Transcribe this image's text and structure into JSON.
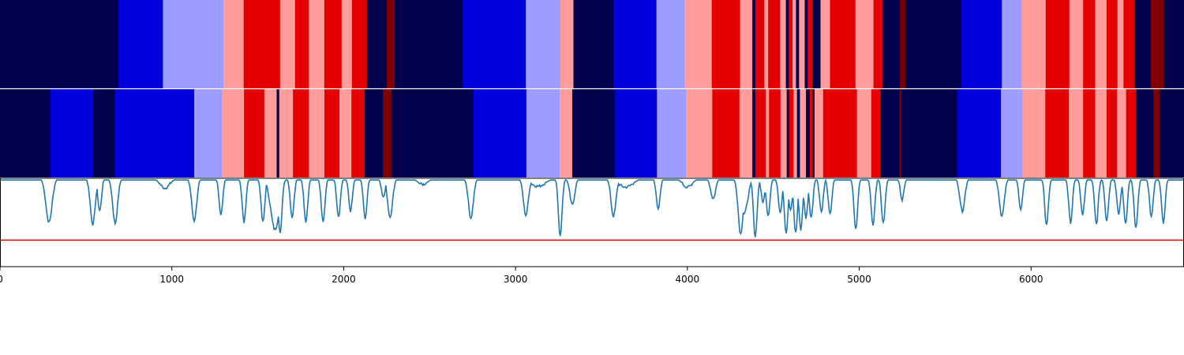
{
  "chart_data": {
    "type": "heatmap",
    "title": "",
    "xlabel": "",
    "ylabel": "",
    "xlim": [
      0,
      6890
    ],
    "x_ticks": [
      0,
      1000,
      2000,
      3000,
      4000,
      5000,
      6000
    ],
    "x_tick_labels": [
      "0",
      "1000",
      "2000",
      "3000",
      "4000",
      "5000",
      "6000"
    ],
    "grid": false,
    "legend": "none",
    "palette": {
      "dark_blue": "#00004c",
      "blue": "#0000dd",
      "light_blue": "#9d9dff",
      "light_red": "#ff9d9d",
      "red": "#e50000",
      "dark_red": "#800000",
      "line": "#1f77b4",
      "threshold": "#e50000"
    },
    "state_rows": [
      {
        "segments": [
          [
            0,
            690,
            "dark_blue"
          ],
          [
            690,
            948,
            "blue"
          ],
          [
            948,
            1300,
            "light_blue"
          ],
          [
            1300,
            1418,
            "light_red"
          ],
          [
            1418,
            1630,
            "red"
          ],
          [
            1630,
            1717,
            "light_red"
          ],
          [
            1717,
            1797,
            "red"
          ],
          [
            1797,
            1887,
            "light_red"
          ],
          [
            1887,
            1988,
            "red"
          ],
          [
            1988,
            2048,
            "light_red"
          ],
          [
            2048,
            2135,
            "red"
          ],
          [
            2135,
            2250,
            "dark_blue"
          ],
          [
            2250,
            2297,
            "dark_red"
          ],
          [
            2297,
            2693,
            "dark_blue"
          ],
          [
            2693,
            3060,
            "blue"
          ],
          [
            3060,
            3260,
            "light_blue"
          ],
          [
            3260,
            3337,
            "light_red"
          ],
          [
            3337,
            3570,
            "dark_blue"
          ],
          [
            3570,
            3820,
            "blue"
          ],
          [
            3820,
            3983,
            "light_blue"
          ],
          [
            3983,
            4142,
            "light_red"
          ],
          [
            4142,
            4307,
            "red"
          ],
          [
            4307,
            4378,
            "light_red"
          ],
          [
            4378,
            4395,
            "dark_blue"
          ],
          [
            4395,
            4448,
            "red"
          ],
          [
            4448,
            4470,
            "light_red"
          ],
          [
            4470,
            4540,
            "red"
          ],
          [
            4540,
            4573,
            "light_red"
          ],
          [
            4573,
            4590,
            "dark_blue"
          ],
          [
            4590,
            4612,
            "red"
          ],
          [
            4612,
            4632,
            "light_red"
          ],
          [
            4632,
            4650,
            "dark_blue"
          ],
          [
            4650,
            4683,
            "light_red"
          ],
          [
            4683,
            4700,
            "dark_blue"
          ],
          [
            4700,
            4727,
            "red"
          ],
          [
            4727,
            4775,
            "dark_blue"
          ],
          [
            4775,
            4830,
            "light_red"
          ],
          [
            4830,
            4978,
            "red"
          ],
          [
            4978,
            5083,
            "light_red"
          ],
          [
            5083,
            5137,
            "red"
          ],
          [
            5137,
            5238,
            "dark_blue"
          ],
          [
            5238,
            5268,
            "dark_red"
          ],
          [
            5268,
            5595,
            "dark_blue"
          ],
          [
            5595,
            5830,
            "blue"
          ],
          [
            5830,
            5945,
            "light_blue"
          ],
          [
            5945,
            6085,
            "light_red"
          ],
          [
            6085,
            6223,
            "red"
          ],
          [
            6223,
            6303,
            "light_red"
          ],
          [
            6303,
            6373,
            "red"
          ],
          [
            6373,
            6440,
            "light_red"
          ],
          [
            6440,
            6503,
            "red"
          ],
          [
            6503,
            6538,
            "light_red"
          ],
          [
            6538,
            6603,
            "red"
          ],
          [
            6603,
            6697,
            "dark_blue"
          ],
          [
            6697,
            6773,
            "dark_red"
          ],
          [
            6773,
            6890,
            "dark_blue"
          ]
        ]
      },
      {
        "segments": [
          [
            0,
            293,
            "dark_blue"
          ],
          [
            293,
            543,
            "blue"
          ],
          [
            543,
            668,
            "dark_blue"
          ],
          [
            668,
            1130,
            "blue"
          ],
          [
            1130,
            1292,
            "light_blue"
          ],
          [
            1292,
            1420,
            "light_red"
          ],
          [
            1420,
            1538,
            "red"
          ],
          [
            1538,
            1610,
            "light_red"
          ],
          [
            1610,
            1625,
            "dark_blue"
          ],
          [
            1625,
            1705,
            "light_red"
          ],
          [
            1705,
            1797,
            "red"
          ],
          [
            1797,
            1888,
            "light_red"
          ],
          [
            1888,
            1975,
            "red"
          ],
          [
            1975,
            2045,
            "light_red"
          ],
          [
            2045,
            2122,
            "red"
          ],
          [
            2122,
            2228,
            "dark_blue"
          ],
          [
            2228,
            2280,
            "dark_red"
          ],
          [
            2280,
            2755,
            "dark_blue"
          ],
          [
            2755,
            3063,
            "blue"
          ],
          [
            3063,
            3257,
            "light_blue"
          ],
          [
            3257,
            3330,
            "light_red"
          ],
          [
            3330,
            3577,
            "dark_blue"
          ],
          [
            3577,
            3823,
            "blue"
          ],
          [
            3823,
            3993,
            "light_blue"
          ],
          [
            3993,
            4145,
            "light_red"
          ],
          [
            4145,
            4303,
            "red"
          ],
          [
            4303,
            4378,
            "light_red"
          ],
          [
            4378,
            4395,
            "dark_blue"
          ],
          [
            4395,
            4457,
            "red"
          ],
          [
            4457,
            4475,
            "light_red"
          ],
          [
            4475,
            4542,
            "red"
          ],
          [
            4542,
            4578,
            "light_red"
          ],
          [
            4578,
            4592,
            "dark_blue"
          ],
          [
            4592,
            4618,
            "red"
          ],
          [
            4618,
            4638,
            "light_red"
          ],
          [
            4638,
            4655,
            "dark_blue"
          ],
          [
            4655,
            4690,
            "light_red"
          ],
          [
            4690,
            4712,
            "dark_blue"
          ],
          [
            4712,
            4727,
            "red"
          ],
          [
            4727,
            4740,
            "dark_blue"
          ],
          [
            4740,
            4790,
            "light_red"
          ],
          [
            4790,
            4987,
            "red"
          ],
          [
            4987,
            5070,
            "light_red"
          ],
          [
            5070,
            5125,
            "red"
          ],
          [
            5125,
            5235,
            "dark_blue"
          ],
          [
            5235,
            5245,
            "dark_red"
          ],
          [
            5245,
            5570,
            "dark_blue"
          ],
          [
            5570,
            5825,
            "blue"
          ],
          [
            5825,
            5950,
            "light_blue"
          ],
          [
            5950,
            6083,
            "light_red"
          ],
          [
            6083,
            6220,
            "red"
          ],
          [
            6220,
            6303,
            "light_red"
          ],
          [
            6303,
            6373,
            "red"
          ],
          [
            6373,
            6440,
            "light_red"
          ],
          [
            6440,
            6500,
            "red"
          ],
          [
            6500,
            6553,
            "light_red"
          ],
          [
            6553,
            6612,
            "red"
          ],
          [
            6612,
            6712,
            "dark_blue"
          ],
          [
            6712,
            6747,
            "dark_red"
          ],
          [
            6747,
            6890,
            "dark_blue"
          ]
        ]
      }
    ],
    "signal": {
      "ylim": [
        -1.0,
        0.0
      ],
      "threshold": -0.7,
      "baseline": -0.02,
      "dips": [
        [
          285,
          -0.5,
          25
        ],
        [
          540,
          -0.52,
          20
        ],
        [
          580,
          -0.37,
          15
        ],
        [
          670,
          -0.51,
          20
        ],
        [
          960,
          -0.11,
          40
        ],
        [
          1130,
          -0.48,
          20
        ],
        [
          1285,
          -0.42,
          15
        ],
        [
          1420,
          -0.5,
          15
        ],
        [
          1530,
          -0.5,
          15
        ],
        [
          1600,
          -0.58,
          35
        ],
        [
          1630,
          -0.63,
          15
        ],
        [
          1700,
          -0.44,
          15
        ],
        [
          1780,
          -0.49,
          15
        ],
        [
          1880,
          -0.5,
          15
        ],
        [
          1970,
          -0.43,
          15
        ],
        [
          2040,
          -0.37,
          15
        ],
        [
          2125,
          -0.46,
          15
        ],
        [
          2230,
          -0.22,
          15
        ],
        [
          2270,
          -0.45,
          20
        ],
        [
          2460,
          -0.07,
          40
        ],
        [
          2740,
          -0.45,
          20
        ],
        [
          3060,
          -0.42,
          20
        ],
        [
          3130,
          -0.09,
          60
        ],
        [
          3260,
          -0.65,
          15
        ],
        [
          3330,
          -0.3,
          20
        ],
        [
          3570,
          -0.43,
          20
        ],
        [
          3640,
          -0.1,
          60
        ],
        [
          3830,
          -0.36,
          15
        ],
        [
          4000,
          -0.1,
          40
        ],
        [
          4150,
          -0.23,
          20
        ],
        [
          4310,
          -0.63,
          20
        ],
        [
          4330,
          -0.4,
          30
        ],
        [
          4395,
          -0.66,
          15
        ],
        [
          4440,
          -0.27,
          15
        ],
        [
          4470,
          -0.42,
          15
        ],
        [
          4540,
          -0.38,
          15
        ],
        [
          4575,
          -0.62,
          15
        ],
        [
          4600,
          -0.37,
          15
        ],
        [
          4630,
          -0.62,
          15
        ],
        [
          4660,
          -0.58,
          15
        ],
        [
          4690,
          -0.45,
          15
        ],
        [
          4720,
          -0.44,
          15
        ],
        [
          4780,
          -0.38,
          15
        ],
        [
          4830,
          -0.41,
          15
        ],
        [
          4980,
          -0.58,
          15
        ],
        [
          5080,
          -0.53,
          15
        ],
        [
          5140,
          -0.51,
          15
        ],
        [
          5250,
          -0.24,
          15
        ],
        [
          5600,
          -0.37,
          20
        ],
        [
          5830,
          -0.43,
          20
        ],
        [
          5940,
          -0.35,
          15
        ],
        [
          6090,
          -0.53,
          15
        ],
        [
          6230,
          -0.5,
          15
        ],
        [
          6300,
          -0.42,
          15
        ],
        [
          6380,
          -0.52,
          15
        ],
        [
          6440,
          -0.48,
          15
        ],
        [
          6510,
          -0.4,
          15
        ],
        [
          6550,
          -0.51,
          15
        ],
        [
          6610,
          -0.57,
          15
        ],
        [
          6700,
          -0.44,
          15
        ],
        [
          6770,
          -0.51,
          15
        ]
      ]
    }
  }
}
